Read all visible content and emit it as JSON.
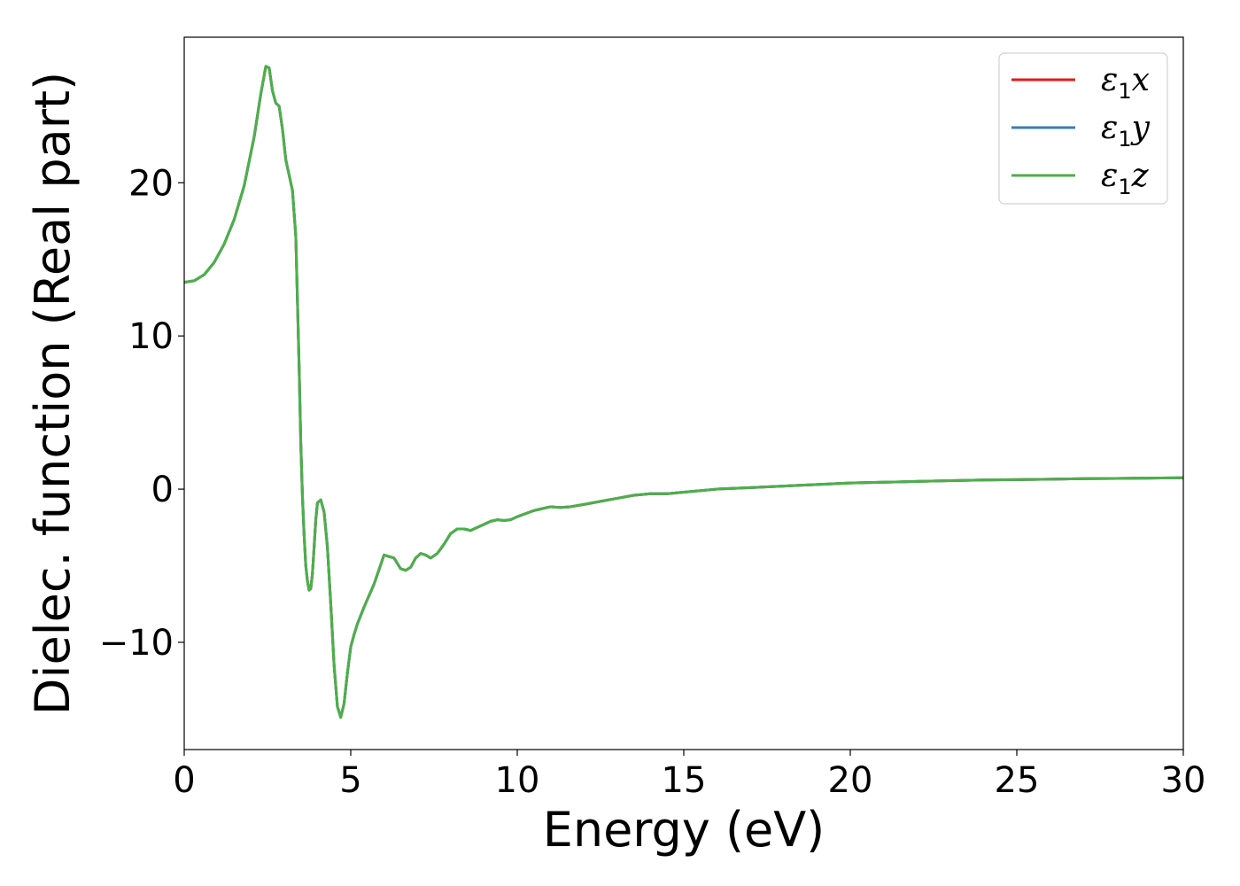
{
  "chart_data": {
    "type": "line",
    "title": "",
    "xlabel": "Energy (eV)",
    "ylabel": "Dielec. function (Real part)",
    "xlim": [
      0,
      30
    ],
    "ylim": [
      -17,
      29.5
    ],
    "xticks": [
      0,
      5,
      10,
      15,
      20,
      25,
      30
    ],
    "yticks": [
      -10,
      0,
      10,
      20
    ],
    "ytick_labels": [
      "−10",
      "0",
      "10",
      "20"
    ],
    "grid": false,
    "legend_position": "top-right",
    "series": [
      {
        "name": "ε1x",
        "legend": {
          "sym": "ε",
          "sub": "1",
          "comp": "x"
        },
        "color": "#e41a1c",
        "x": [
          0,
          0.3,
          0.6,
          0.9,
          1.2,
          1.5,
          1.8,
          2.1,
          2.3,
          2.45,
          2.55,
          2.65,
          2.75,
          2.85,
          2.95,
          3.05,
          3.15,
          3.25,
          3.35,
          3.45,
          3.5,
          3.55,
          3.6,
          3.65,
          3.7,
          3.75,
          3.8,
          3.85,
          3.9,
          3.95,
          4.0,
          4.1,
          4.2,
          4.3,
          4.4,
          4.5,
          4.6,
          4.7,
          4.8,
          4.9,
          5.0,
          5.1,
          5.2,
          5.4,
          5.7,
          6.0,
          6.3,
          6.5,
          6.65,
          6.8,
          6.95,
          7.1,
          7.25,
          7.4,
          7.6,
          7.8,
          8.0,
          8.2,
          8.4,
          8.6,
          8.8,
          9.0,
          9.2,
          9.4,
          9.6,
          9.8,
          10.0,
          10.5,
          11.0,
          11.3,
          11.6,
          12.0,
          12.5,
          13.0,
          13.5,
          14.0,
          14.5,
          15.0,
          16.0,
          17.0,
          18.0,
          19.0,
          20.0,
          21.0,
          22.0,
          23.0,
          24.0,
          25.0,
          26.0,
          27.0,
          28.0,
          29.0,
          30.0
        ],
        "values": [
          13.5,
          13.6,
          14.0,
          14.8,
          16.0,
          17.6,
          19.8,
          23.0,
          25.8,
          27.6,
          27.5,
          26.0,
          25.2,
          25.0,
          23.5,
          21.5,
          20.5,
          19.5,
          16.5,
          8.0,
          3.0,
          -0.5,
          -3.0,
          -5.0,
          -6.0,
          -6.6,
          -6.5,
          -5.5,
          -3.8,
          -2.0,
          -0.9,
          -0.7,
          -1.5,
          -3.8,
          -7.5,
          -11.5,
          -14.2,
          -14.9,
          -14.0,
          -12.0,
          -10.3,
          -9.5,
          -8.8,
          -7.7,
          -6.2,
          -4.3,
          -4.5,
          -5.2,
          -5.3,
          -5.1,
          -4.5,
          -4.2,
          -4.3,
          -4.5,
          -4.2,
          -3.6,
          -2.9,
          -2.6,
          -2.6,
          -2.7,
          -2.5,
          -2.3,
          -2.1,
          -2.0,
          -2.05,
          -2.0,
          -1.8,
          -1.4,
          -1.15,
          -1.2,
          -1.15,
          -1.0,
          -0.8,
          -0.6,
          -0.4,
          -0.3,
          -0.3,
          -0.2,
          0.0,
          0.1,
          0.2,
          0.3,
          0.4,
          0.45,
          0.5,
          0.55,
          0.6,
          0.62,
          0.65,
          0.68,
          0.7,
          0.72,
          0.74
        ]
      },
      {
        "name": "ε1y",
        "legend": {
          "sym": "ε",
          "sub": "1",
          "comp": "y"
        },
        "color": "#377eb8",
        "x": [
          0,
          0.3,
          0.6,
          0.9,
          1.2,
          1.5,
          1.8,
          2.1,
          2.3,
          2.45,
          2.55,
          2.65,
          2.75,
          2.85,
          2.95,
          3.05,
          3.15,
          3.25,
          3.35,
          3.45,
          3.5,
          3.55,
          3.6,
          3.65,
          3.7,
          3.75,
          3.8,
          3.85,
          3.9,
          3.95,
          4.0,
          4.1,
          4.2,
          4.3,
          4.4,
          4.5,
          4.6,
          4.7,
          4.8,
          4.9,
          5.0,
          5.1,
          5.2,
          5.4,
          5.7,
          6.0,
          6.3,
          6.5,
          6.65,
          6.8,
          6.95,
          7.1,
          7.25,
          7.4,
          7.6,
          7.8,
          8.0,
          8.2,
          8.4,
          8.6,
          8.8,
          9.0,
          9.2,
          9.4,
          9.6,
          9.8,
          10.0,
          10.5,
          11.0,
          11.3,
          11.6,
          12.0,
          12.5,
          13.0,
          13.5,
          14.0,
          14.5,
          15.0,
          16.0,
          17.0,
          18.0,
          19.0,
          20.0,
          21.0,
          22.0,
          23.0,
          24.0,
          25.0,
          26.0,
          27.0,
          28.0,
          29.0,
          30.0
        ],
        "values": [
          13.5,
          13.6,
          14.0,
          14.8,
          16.0,
          17.6,
          19.8,
          23.0,
          25.8,
          27.6,
          27.5,
          26.0,
          25.2,
          25.0,
          23.5,
          21.5,
          20.5,
          19.5,
          16.5,
          8.0,
          3.0,
          -0.5,
          -3.0,
          -5.0,
          -6.0,
          -6.6,
          -6.5,
          -5.5,
          -3.8,
          -2.0,
          -0.9,
          -0.7,
          -1.5,
          -3.8,
          -7.5,
          -11.5,
          -14.2,
          -14.9,
          -14.0,
          -12.0,
          -10.3,
          -9.5,
          -8.8,
          -7.7,
          -6.2,
          -4.3,
          -4.5,
          -5.2,
          -5.3,
          -5.1,
          -4.5,
          -4.2,
          -4.3,
          -4.5,
          -4.2,
          -3.6,
          -2.9,
          -2.6,
          -2.6,
          -2.7,
          -2.5,
          -2.3,
          -2.1,
          -2.0,
          -2.05,
          -2.0,
          -1.8,
          -1.4,
          -1.15,
          -1.2,
          -1.15,
          -1.0,
          -0.8,
          -0.6,
          -0.4,
          -0.3,
          -0.3,
          -0.2,
          0.0,
          0.1,
          0.2,
          0.3,
          0.4,
          0.45,
          0.5,
          0.55,
          0.6,
          0.62,
          0.65,
          0.68,
          0.7,
          0.72,
          0.74
        ]
      },
      {
        "name": "ε1z",
        "legend": {
          "sym": "ε",
          "sub": "1",
          "comp": "z"
        },
        "color": "#4daf4a",
        "x": [
          0,
          0.3,
          0.6,
          0.9,
          1.2,
          1.5,
          1.8,
          2.1,
          2.3,
          2.45,
          2.55,
          2.65,
          2.75,
          2.85,
          2.95,
          3.05,
          3.15,
          3.25,
          3.35,
          3.45,
          3.5,
          3.55,
          3.6,
          3.65,
          3.7,
          3.75,
          3.8,
          3.85,
          3.9,
          3.95,
          4.0,
          4.1,
          4.2,
          4.3,
          4.4,
          4.5,
          4.6,
          4.7,
          4.8,
          4.9,
          5.0,
          5.1,
          5.2,
          5.4,
          5.7,
          6.0,
          6.3,
          6.5,
          6.65,
          6.8,
          6.95,
          7.1,
          7.25,
          7.4,
          7.6,
          7.8,
          8.0,
          8.2,
          8.4,
          8.6,
          8.8,
          9.0,
          9.2,
          9.4,
          9.6,
          9.8,
          10.0,
          10.5,
          11.0,
          11.3,
          11.6,
          12.0,
          12.5,
          13.0,
          13.5,
          14.0,
          14.5,
          15.0,
          16.0,
          17.0,
          18.0,
          19.0,
          20.0,
          21.0,
          22.0,
          23.0,
          24.0,
          25.0,
          26.0,
          27.0,
          28.0,
          29.0,
          30.0
        ],
        "values": [
          13.5,
          13.6,
          14.0,
          14.8,
          16.0,
          17.6,
          19.8,
          23.0,
          25.8,
          27.6,
          27.5,
          26.0,
          25.2,
          25.0,
          23.5,
          21.5,
          20.5,
          19.5,
          16.5,
          8.0,
          3.0,
          -0.5,
          -3.0,
          -5.0,
          -6.0,
          -6.6,
          -6.5,
          -5.5,
          -3.8,
          -2.0,
          -0.9,
          -0.7,
          -1.5,
          -3.8,
          -7.5,
          -11.5,
          -14.2,
          -14.9,
          -14.0,
          -12.0,
          -10.3,
          -9.5,
          -8.8,
          -7.7,
          -6.2,
          -4.3,
          -4.5,
          -5.2,
          -5.3,
          -5.1,
          -4.5,
          -4.2,
          -4.3,
          -4.5,
          -4.2,
          -3.6,
          -2.9,
          -2.6,
          -2.6,
          -2.7,
          -2.5,
          -2.3,
          -2.1,
          -2.0,
          -2.05,
          -2.0,
          -1.8,
          -1.4,
          -1.15,
          -1.2,
          -1.15,
          -1.0,
          -0.8,
          -0.6,
          -0.4,
          -0.3,
          -0.3,
          -0.2,
          0.0,
          0.1,
          0.2,
          0.3,
          0.4,
          0.45,
          0.5,
          0.55,
          0.6,
          0.62,
          0.65,
          0.68,
          0.7,
          0.72,
          0.74
        ]
      }
    ]
  }
}
